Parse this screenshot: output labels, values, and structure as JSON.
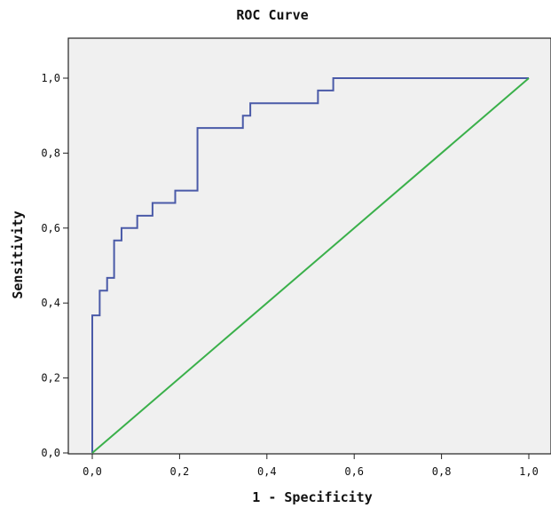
{
  "chart_data": {
    "type": "line",
    "title": "ROC Curve",
    "xlabel": "1 - Specificity",
    "ylabel": "Sensitivity",
    "xlim": [
      0,
      1
    ],
    "ylim": [
      0,
      1
    ],
    "x_ticks": [
      "0,0",
      "0,2",
      "0,4",
      "0,6",
      "0,8",
      "1,0"
    ],
    "y_ticks": [
      "0,0",
      "0,2",
      "0,4",
      "0,6",
      "0,8",
      "1,0"
    ],
    "grid": false,
    "legend": "none",
    "series": [
      {
        "color": "#4a5aa8",
        "x": [
          0,
          0,
          0.017,
          0.017,
          0.034,
          0.034,
          0.05,
          0.05,
          0.067,
          0.067,
          0.103,
          0.103,
          0.138,
          0.138,
          0.19,
          0.19,
          0.241,
          0.241,
          0.345,
          0.345,
          0.362,
          0.362,
          0.517,
          0.517,
          0.552,
          0.552,
          1.0
        ],
        "y": [
          0,
          0.367,
          0.367,
          0.433,
          0.433,
          0.467,
          0.467,
          0.567,
          0.567,
          0.6,
          0.6,
          0.633,
          0.633,
          0.667,
          0.667,
          0.7,
          0.7,
          0.867,
          0.867,
          0.9,
          0.9,
          0.933,
          0.933,
          0.967,
          0.967,
          1.0,
          1.0
        ]
      },
      {
        "color": "#3ab04a",
        "x": [
          0,
          1
        ],
        "y": [
          0,
          1
        ]
      }
    ],
    "background": "#f0f0f0"
  }
}
